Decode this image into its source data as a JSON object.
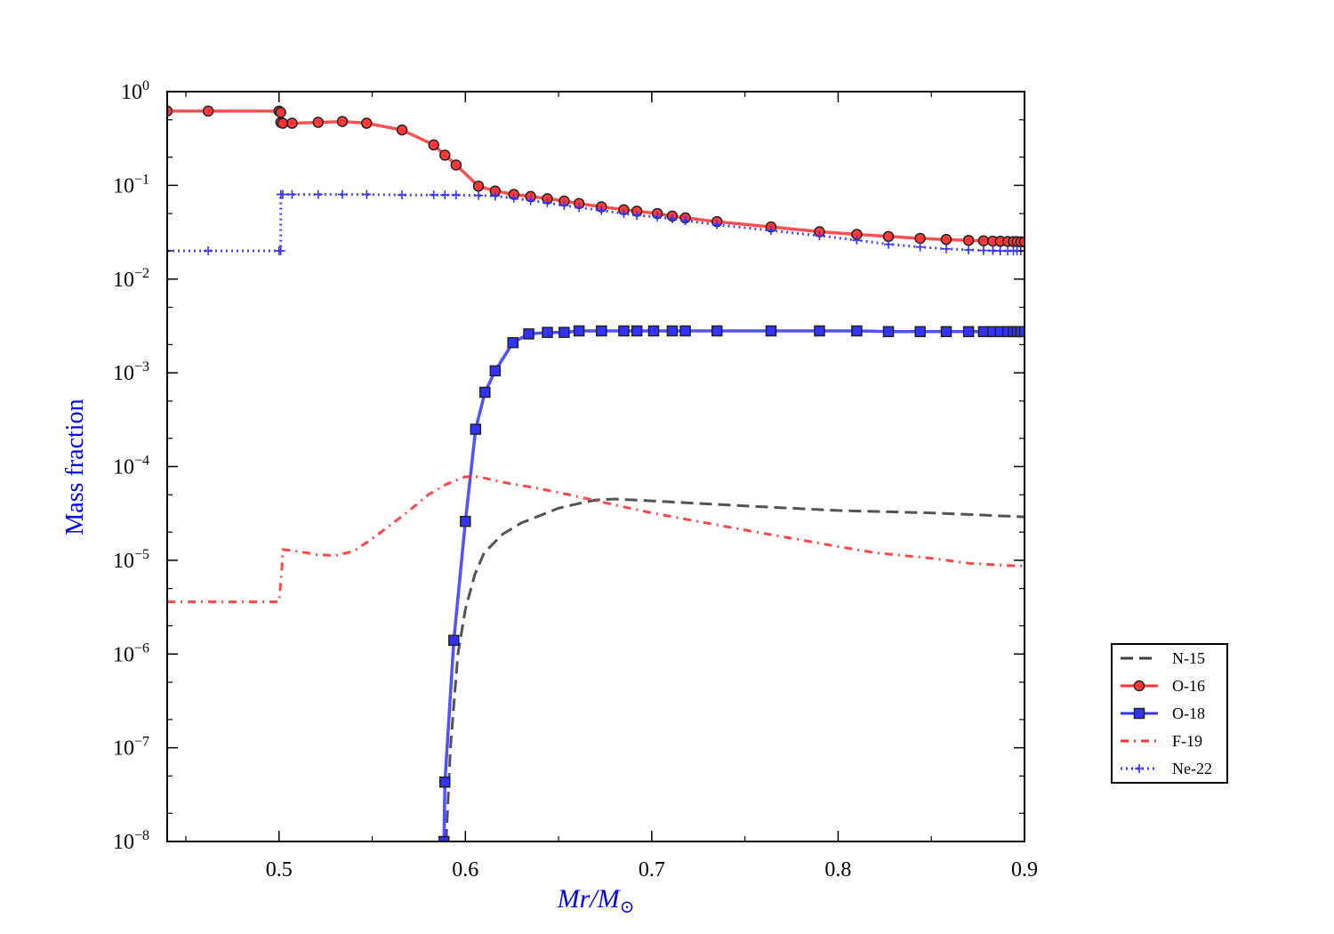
{
  "chart_data": {
    "type": "line",
    "title": "",
    "xlabel": "Mr/M⊙",
    "ylabel": "Mass fraction",
    "xlim": [
      0.44,
      0.9
    ],
    "ylim": [
      1e-08,
      1
    ],
    "yscale": "log",
    "x_ticks": [
      0.5,
      0.6,
      0.7,
      0.8,
      0.9
    ],
    "x_tick_labels": [
      "0.5",
      "0.6",
      "0.7",
      "0.8",
      "0.9"
    ],
    "y_ticks": [
      1e-08,
      1e-07,
      1e-06,
      1e-05,
      0.0001,
      0.001,
      0.01,
      0.1,
      1
    ],
    "y_tick_labels": [
      {
        "base": "10",
        "exp": "−8"
      },
      {
        "base": "10",
        "exp": "−7"
      },
      {
        "base": "10",
        "exp": "−6"
      },
      {
        "base": "10",
        "exp": "−5"
      },
      {
        "base": "10",
        "exp": "−4"
      },
      {
        "base": "10",
        "exp": "−3"
      },
      {
        "base": "10",
        "exp": "−2"
      },
      {
        "base": "10",
        "exp": "−1"
      },
      {
        "base": "10",
        "exp": "0"
      }
    ],
    "grid": false,
    "legend_position": "outside-right",
    "series": [
      {
        "name": "N-15",
        "color": "#404040",
        "line": "dashed",
        "marker": "none",
        "x": [
          0.5897,
          0.592,
          0.596,
          0.6,
          0.605,
          0.61,
          0.62,
          0.63,
          0.64,
          0.65,
          0.66,
          0.67,
          0.68,
          0.7,
          0.75,
          0.8,
          0.85,
          0.9
        ],
        "y": [
          1e-08,
          1e-07,
          1e-06,
          3e-06,
          7e-06,
          1.2e-05,
          1.9e-05,
          2.5e-05,
          3e-05,
          3.6e-05,
          4e-05,
          4.4e-05,
          4.5e-05,
          4.3e-05,
          3.8e-05,
          3.4e-05,
          3.2e-05,
          2.9e-05
        ]
      },
      {
        "name": "O-16",
        "color": "#ff3333",
        "line": "solid",
        "marker": "circle",
        "x": [
          0.44,
          0.462,
          0.5,
          0.5009,
          0.501,
          0.502,
          0.507,
          0.521,
          0.534,
          0.547,
          0.566,
          0.583,
          0.589,
          0.595,
          0.607,
          0.616,
          0.626,
          0.635,
          0.644,
          0.653,
          0.661,
          0.673,
          0.685,
          0.692,
          0.703,
          0.711,
          0.718,
          0.735,
          0.764,
          0.79,
          0.81,
          0.827,
          0.844,
          0.858,
          0.87,
          0.878,
          0.883,
          0.887,
          0.891,
          0.894,
          0.896,
          0.898,
          0.9
        ],
        "y": [
          0.62,
          0.62,
          0.62,
          0.6,
          0.47,
          0.46,
          0.46,
          0.47,
          0.48,
          0.46,
          0.39,
          0.27,
          0.21,
          0.165,
          0.098,
          0.087,
          0.08,
          0.076,
          0.072,
          0.068,
          0.064,
          0.059,
          0.055,
          0.053,
          0.05,
          0.047,
          0.045,
          0.041,
          0.036,
          0.032,
          0.03,
          0.0285,
          0.0272,
          0.0265,
          0.0259,
          0.0256,
          0.0254,
          0.0253,
          0.0252,
          0.0251,
          0.0251,
          0.025,
          0.025
        ]
      },
      {
        "name": "O-18",
        "color": "#3333ff",
        "line": "solid",
        "marker": "square",
        "x": [
          0.5885,
          0.589,
          0.5938,
          0.6,
          0.6055,
          0.6105,
          0.616,
          0.6255,
          0.634,
          0.644,
          0.653,
          0.661,
          0.673,
          0.685,
          0.692,
          0.701,
          0.711,
          0.718,
          0.735,
          0.764,
          0.79,
          0.81,
          0.827,
          0.844,
          0.858,
          0.87,
          0.878,
          0.883,
          0.887,
          0.891,
          0.894,
          0.896,
          0.898,
          0.9
        ],
        "y": [
          1e-08,
          4.3e-08,
          1.4e-06,
          2.6e-05,
          0.00025,
          0.00062,
          0.00105,
          0.0021,
          0.0026,
          0.0027,
          0.0027,
          0.0028,
          0.0028,
          0.0028,
          0.0028,
          0.0028,
          0.0028,
          0.0028,
          0.0028,
          0.0028,
          0.0028,
          0.0028,
          0.00275,
          0.00275,
          0.00275,
          0.00275,
          0.00275,
          0.00275,
          0.00275,
          0.00275,
          0.00275,
          0.00275,
          0.00275,
          0.00275
        ]
      },
      {
        "name": "F-19",
        "color": "#ff3333",
        "line": "dashdot",
        "marker": "none",
        "x": [
          0.44,
          0.5,
          0.5015,
          0.502,
          0.51,
          0.52,
          0.53,
          0.54,
          0.55,
          0.56,
          0.57,
          0.58,
          0.59,
          0.6,
          0.607,
          0.62,
          0.64,
          0.66,
          0.68,
          0.7,
          0.72,
          0.75,
          0.78,
          0.8,
          0.82,
          0.85,
          0.87,
          0.89,
          0.9
        ],
        "y": [
          3.6e-06,
          3.6e-06,
          8e-06,
          1.3e-05,
          1.25e-05,
          1.15e-05,
          1.12e-05,
          1.25e-05,
          1.7e-05,
          2.4e-05,
          3.4e-05,
          5e-05,
          6.5e-05,
          7.8e-05,
          7.8e-05,
          6.8e-05,
          5.8e-05,
          4.8e-05,
          3.9e-05,
          3.2e-05,
          2.7e-05,
          2.1e-05,
          1.65e-05,
          1.4e-05,
          1.2e-05,
          1.05e-05,
          9.3e-06,
          8.8e-06,
          8.7e-06
        ]
      },
      {
        "name": "Ne-22",
        "color": "#3333ff",
        "line": "dotted",
        "marker": "plus",
        "x": [
          0.44,
          0.462,
          0.5,
          0.5009,
          0.501,
          0.502,
          0.507,
          0.521,
          0.534,
          0.547,
          0.566,
          0.583,
          0.589,
          0.595,
          0.607,
          0.616,
          0.626,
          0.635,
          0.644,
          0.653,
          0.661,
          0.673,
          0.685,
          0.692,
          0.703,
          0.711,
          0.718,
          0.735,
          0.764,
          0.79,
          0.81,
          0.827,
          0.844,
          0.858,
          0.87,
          0.878,
          0.883,
          0.887,
          0.891,
          0.894,
          0.896,
          0.898,
          0.9
        ],
        "y": [
          0.02,
          0.02,
          0.02,
          0.02,
          0.08,
          0.08,
          0.08,
          0.08,
          0.08,
          0.08,
          0.079,
          0.079,
          0.079,
          0.079,
          0.078,
          0.077,
          0.073,
          0.069,
          0.065,
          0.061,
          0.058,
          0.054,
          0.05,
          0.048,
          0.046,
          0.044,
          0.042,
          0.038,
          0.033,
          0.029,
          0.026,
          0.0235,
          0.022,
          0.021,
          0.0205,
          0.0202,
          0.0201,
          0.02,
          0.02,
          0.02,
          0.02,
          0.02,
          0.02
        ]
      }
    ]
  }
}
